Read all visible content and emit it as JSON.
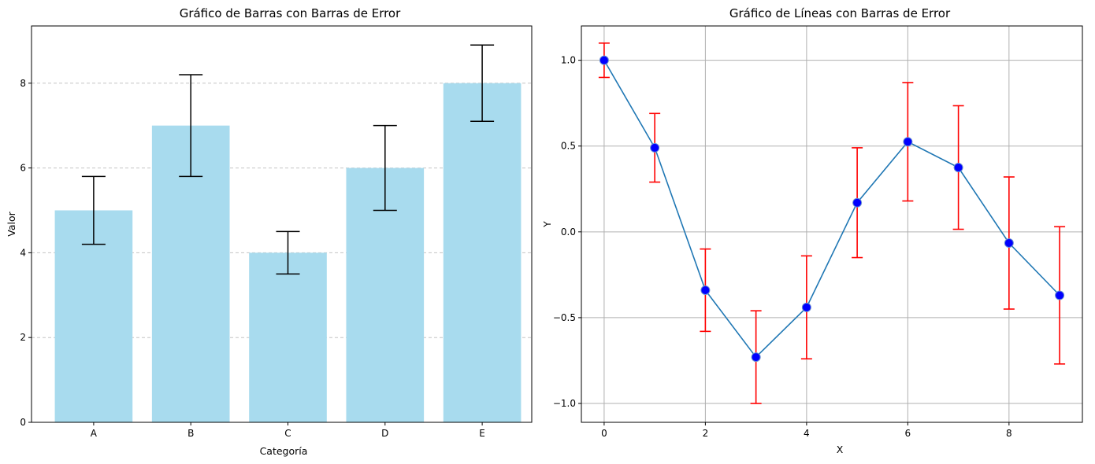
{
  "chart_data": [
    {
      "type": "bar",
      "title": "Gráfico de Barras con Barras de Error",
      "xlabel": "Categoría",
      "ylabel": "Valor",
      "categories": [
        "A",
        "B",
        "C",
        "D",
        "E"
      ],
      "values": [
        5,
        7,
        4,
        6,
        8
      ],
      "errors": [
        0.8,
        1.2,
        0.5,
        1.0,
        0.9
      ],
      "ylim": [
        0,
        9.35
      ],
      "yticks": [
        0,
        2,
        4,
        6,
        8
      ],
      "grid": "y-dashed",
      "bar_color": "#a8dbee",
      "error_color": "#000000"
    },
    {
      "type": "line",
      "title": "Gráfico de Líneas con Barras de Error",
      "xlabel": "X",
      "ylabel": "Y",
      "x": [
        0,
        1,
        2,
        3,
        4,
        5,
        6,
        7,
        8,
        9
      ],
      "y": [
        1.0,
        0.49,
        -0.34,
        -0.73,
        -0.44,
        0.17,
        0.525,
        0.375,
        -0.065,
        -0.37
      ],
      "errors": [
        0.1,
        0.2,
        0.24,
        0.27,
        0.3,
        0.32,
        0.345,
        0.36,
        0.385,
        0.4
      ],
      "xlim": [
        -0.45,
        9.45
      ],
      "ylim": [
        -1.11,
        1.2
      ],
      "xticks": [
        0,
        2,
        4,
        6,
        8
      ],
      "yticks": [
        -1.0,
        -0.5,
        0.0,
        0.5,
        1.0
      ],
      "ytick_labels": [
        "−1.0",
        "−0.5",
        "0.0",
        "0.5",
        "1.0"
      ],
      "grid": "both",
      "line_color": "#1f77b4",
      "marker_color": "#0000ff",
      "error_color": "#ff0000"
    }
  ]
}
